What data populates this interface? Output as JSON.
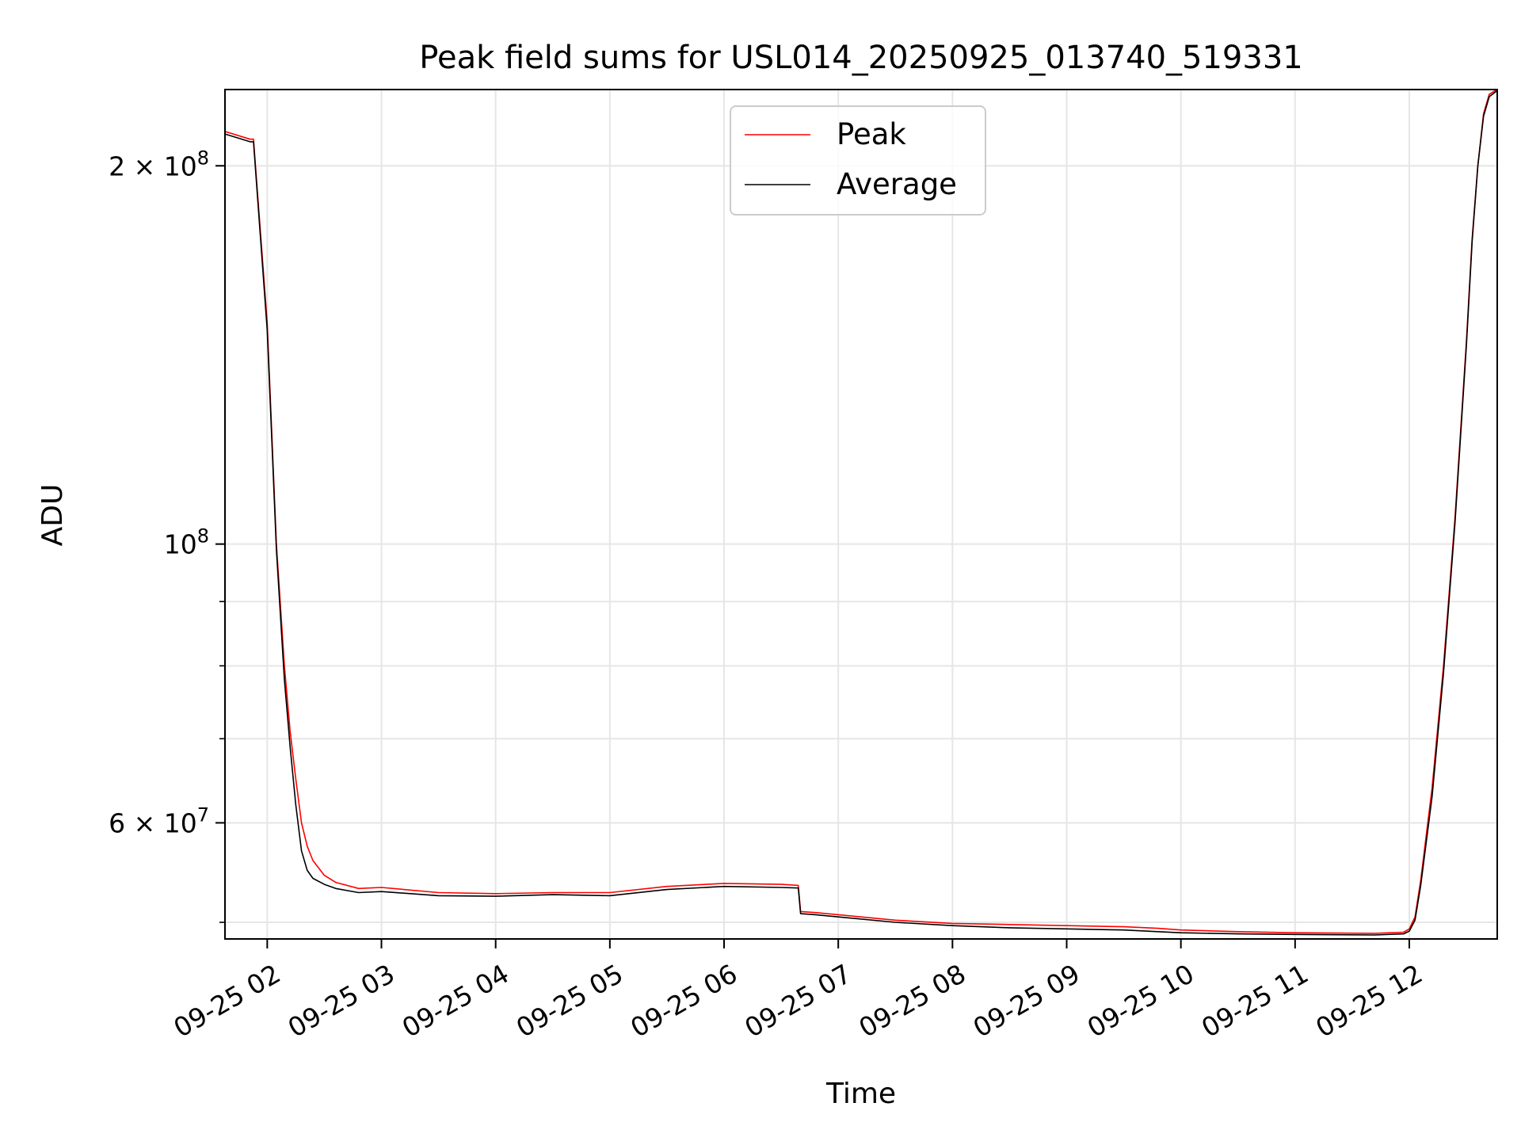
{
  "chart_data": {
    "type": "line",
    "title": "Peak field sums for USL014_20250925_013740_519331",
    "xlabel": "Time",
    "ylabel": "ADU",
    "yscale": "log",
    "x_unit": "hours since 09-25 00:00",
    "xlim": [
      1.63,
      12.77
    ],
    "ylim": [
      48500000,
      230000000
    ],
    "grid": true,
    "legend_position": "upper-center",
    "x_ticks": [
      {
        "value": 2,
        "label": "09-25 02"
      },
      {
        "value": 3,
        "label": "09-25 03"
      },
      {
        "value": 4,
        "label": "09-25 04"
      },
      {
        "value": 5,
        "label": "09-25 05"
      },
      {
        "value": 6,
        "label": "09-25 06"
      },
      {
        "value": 7,
        "label": "09-25 07"
      },
      {
        "value": 8,
        "label": "09-25 08"
      },
      {
        "value": 9,
        "label": "09-25 09"
      },
      {
        "value": 10,
        "label": "09-25 10"
      },
      {
        "value": 11,
        "label": "09-25 11"
      },
      {
        "value": 12,
        "label": "09-25 12"
      }
    ],
    "y_major_ticks": [
      {
        "value": 60000000,
        "mant": "6",
        "exp": "7"
      },
      {
        "value": 100000000,
        "mant": "",
        "exp": "8"
      },
      {
        "value": 200000000,
        "mant": "2",
        "exp": "8"
      }
    ],
    "y_minor_ticks": [
      50000000,
      70000000,
      80000000,
      90000000
    ],
    "series": [
      {
        "name": "Peak",
        "color": "#ff0000",
        "x": [
          1.63,
          1.85,
          1.88,
          2.0,
          2.08,
          2.15,
          2.2,
          2.25,
          2.3,
          2.35,
          2.4,
          2.5,
          2.6,
          2.8,
          3.0,
          3.5,
          4.0,
          4.5,
          5.0,
          5.5,
          6.0,
          6.5,
          6.65,
          6.67,
          6.8,
          7.0,
          7.5,
          8.0,
          8.5,
          9.0,
          9.5,
          9.8,
          10.0,
          10.5,
          11.0,
          11.7,
          11.95,
          12.0,
          12.05,
          12.1,
          12.2,
          12.3,
          12.4,
          12.5,
          12.55,
          12.6,
          12.65,
          12.7,
          12.77
        ],
        "values": [
          213000000,
          210000000,
          210000000,
          150000000,
          100000000,
          80000000,
          71000000,
          65000000,
          60000000,
          57500000,
          56000000,
          54500000,
          53800000,
          53200000,
          53300000,
          52800000,
          52700000,
          52800000,
          52800000,
          53400000,
          53700000,
          53600000,
          53500000,
          51000000,
          50900000,
          50700000,
          50200000,
          49900000,
          49800000,
          49700000,
          49600000,
          49450000,
          49300000,
          49150000,
          49050000,
          49000000,
          49100000,
          49400000,
          50500000,
          54000000,
          64000000,
          80000000,
          105000000,
          145000000,
          175000000,
          200000000,
          220000000,
          228000000,
          230000000
        ]
      },
      {
        "name": "Average",
        "color": "#000000",
        "x": [
          1.63,
          1.85,
          1.88,
          2.0,
          2.08,
          2.15,
          2.2,
          2.25,
          2.3,
          2.35,
          2.4,
          2.5,
          2.6,
          2.8,
          3.0,
          3.5,
          4.0,
          4.5,
          5.0,
          5.5,
          6.0,
          6.5,
          6.65,
          6.67,
          6.8,
          7.0,
          7.5,
          8.0,
          8.5,
          9.0,
          9.5,
          9.8,
          10.0,
          10.5,
          11.0,
          11.7,
          11.95,
          12.0,
          12.05,
          12.1,
          12.2,
          12.3,
          12.4,
          12.5,
          12.55,
          12.6,
          12.65,
          12.7,
          12.77
        ],
        "values": [
          212000000,
          209000000,
          209000000,
          148000000,
          99000000,
          78000000,
          69000000,
          62000000,
          57000000,
          55000000,
          54200000,
          53600000,
          53200000,
          52800000,
          52900000,
          52500000,
          52450000,
          52600000,
          52500000,
          53100000,
          53400000,
          53300000,
          53250000,
          50800000,
          50700000,
          50500000,
          50000000,
          49700000,
          49500000,
          49400000,
          49300000,
          49150000,
          49050000,
          48950000,
          48900000,
          48850000,
          48950000,
          49200000,
          50200000,
          53500000,
          63000000,
          79000000,
          104000000,
          144000000,
          174000000,
          200000000,
          219000000,
          227000000,
          229500000
        ]
      }
    ]
  }
}
